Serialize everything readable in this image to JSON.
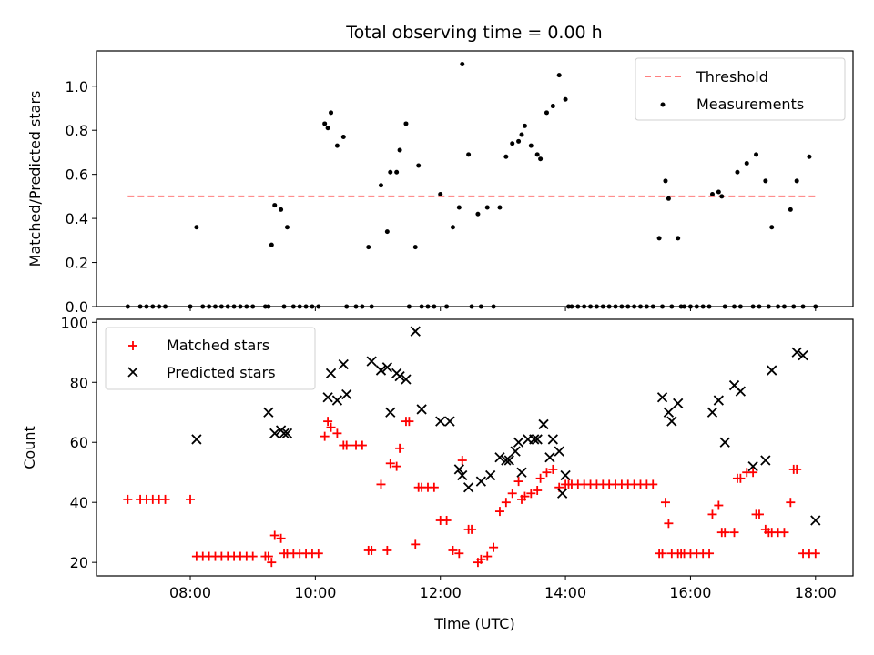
{
  "title": "Total observing time = 0.00 h",
  "chart_data": [
    {
      "type": "scatter",
      "ylabel": "Matched/Predicted stars",
      "xlim": [
        6.5,
        18.6
      ],
      "ylim": [
        0,
        1.16
      ],
      "yticks": [
        0.0,
        0.2,
        0.4,
        0.6,
        0.8,
        1.0
      ],
      "ytick_labels": [
        "0.0",
        "0.2",
        "0.4",
        "0.6",
        "0.8",
        "1.0"
      ],
      "threshold": {
        "name": "Threshold",
        "value": 0.5,
        "x_range": [
          7.0,
          18.05
        ],
        "color": "#ff7f7f",
        "style": "dashed"
      },
      "legend": {
        "placement": "top-right",
        "entries": [
          "Threshold",
          "Measurements"
        ]
      },
      "series": [
        {
          "name": "Measurements",
          "marker": "dot",
          "color": "#000000",
          "x": [
            7.0,
            7.2,
            7.3,
            7.4,
            7.5,
            7.6,
            8.0,
            8.1,
            8.2,
            8.3,
            8.4,
            8.5,
            8.6,
            8.7,
            8.8,
            8.9,
            9.0,
            9.2,
            9.25,
            9.3,
            9.35,
            9.45,
            9.5,
            9.55,
            9.65,
            9.75,
            9.85,
            9.95,
            10.05,
            10.15,
            10.2,
            10.25,
            10.35,
            10.45,
            10.5,
            10.65,
            10.75,
            10.85,
            10.9,
            11.05,
            11.15,
            11.2,
            11.3,
            11.35,
            11.45,
            11.5,
            11.6,
            11.65,
            11.7,
            11.8,
            11.9,
            12.0,
            12.1,
            12.2,
            12.3,
            12.35,
            12.45,
            12.5,
            12.6,
            12.65,
            12.75,
            12.85,
            12.95,
            13.05,
            13.15,
            13.25,
            13.3,
            13.35,
            13.45,
            13.55,
            13.6,
            13.7,
            13.8,
            13.9,
            14.0,
            14.05,
            14.1,
            14.2,
            14.3,
            14.4,
            14.5,
            14.6,
            14.7,
            14.8,
            14.9,
            15.0,
            15.1,
            15.2,
            15.3,
            15.4,
            15.5,
            15.55,
            15.6,
            15.65,
            15.7,
            15.8,
            15.85,
            15.9,
            16.0,
            16.1,
            16.2,
            16.3,
            16.35,
            16.45,
            16.5,
            16.55,
            16.7,
            16.75,
            16.8,
            16.9,
            17.0,
            17.05,
            17.1,
            17.2,
            17.25,
            17.3,
            17.4,
            17.5,
            17.6,
            17.65,
            17.7,
            17.8,
            17.9,
            18.0
          ],
          "y": [
            0.0,
            0.0,
            0.0,
            0.0,
            0.0,
            0.0,
            0.0,
            0.36,
            0.0,
            0.0,
            0.0,
            0.0,
            0.0,
            0.0,
            0.0,
            0.0,
            0.0,
            0.0,
            0.0,
            0.28,
            0.46,
            0.44,
            0.0,
            0.36,
            0.0,
            0.0,
            0.0,
            0.0,
            0.0,
            0.83,
            0.81,
            0.88,
            0.73,
            0.77,
            0.0,
            0.0,
            0.0,
            0.27,
            0.0,
            0.55,
            0.34,
            0.61,
            0.61,
            0.71,
            0.83,
            0.0,
            0.27,
            0.64,
            0.0,
            0.0,
            0.0,
            0.51,
            0.0,
            0.36,
            0.45,
            1.1,
            0.69,
            0.0,
            0.42,
            0.0,
            0.45,
            0.0,
            0.45,
            0.68,
            0.74,
            0.75,
            0.78,
            0.82,
            0.73,
            0.69,
            0.67,
            0.88,
            0.91,
            1.05,
            0.94,
            0.0,
            0.0,
            0.0,
            0.0,
            0.0,
            0.0,
            0.0,
            0.0,
            0.0,
            0.0,
            0.0,
            0.0,
            0.0,
            0.0,
            0.0,
            0.31,
            0.0,
            0.57,
            0.49,
            0.0,
            0.31,
            0.0,
            0.0,
            0.0,
            0.0,
            0.0,
            0.0,
            0.51,
            0.52,
            0.5,
            0.0,
            0.0,
            0.61,
            0.0,
            0.65,
            0.0,
            0.69,
            0.0,
            0.57,
            0.0,
            0.36,
            0.0,
            0.0,
            0.44,
            0.0,
            0.57,
            0.0,
            0.68,
            0.0
          ]
        }
      ]
    },
    {
      "type": "scatter",
      "xlabel": "Time (UTC)",
      "ylabel": "Count",
      "xlim": [
        6.5,
        18.6
      ],
      "ylim": [
        15.5,
        101
      ],
      "xticks": [
        8,
        10,
        12,
        14,
        16,
        18
      ],
      "xtick_labels": [
        "08:00",
        "10:00",
        "12:00",
        "14:00",
        "16:00",
        "18:00"
      ],
      "yticks": [
        20,
        40,
        60,
        80,
        100
      ],
      "ytick_labels": [
        "20",
        "40",
        "60",
        "80",
        "100"
      ],
      "legend": {
        "placement": "top-left",
        "entries": [
          "Matched stars",
          "Predicted stars"
        ]
      },
      "series": [
        {
          "name": "Matched stars",
          "marker": "plus",
          "color": "#ff0000",
          "x": [
            7.0,
            7.2,
            7.3,
            7.4,
            7.5,
            7.6,
            8.0,
            8.1,
            8.2,
            8.3,
            8.4,
            8.5,
            8.6,
            8.7,
            8.8,
            8.9,
            9.0,
            9.2,
            9.25,
            9.3,
            9.35,
            9.45,
            9.5,
            9.55,
            9.65,
            9.75,
            9.85,
            9.95,
            10.05,
            10.15,
            10.2,
            10.25,
            10.35,
            10.45,
            10.5,
            10.65,
            10.75,
            10.85,
            10.9,
            11.05,
            11.15,
            11.2,
            11.3,
            11.35,
            11.45,
            11.5,
            11.6,
            11.65,
            11.7,
            11.8,
            11.9,
            12.0,
            12.1,
            12.2,
            12.3,
            12.35,
            12.45,
            12.5,
            12.6,
            12.65,
            12.75,
            12.85,
            12.95,
            13.05,
            13.15,
            13.25,
            13.3,
            13.35,
            13.45,
            13.55,
            13.6,
            13.7,
            13.8,
            13.9,
            14.0,
            14.05,
            14.1,
            14.2,
            14.3,
            14.4,
            14.5,
            14.6,
            14.7,
            14.8,
            14.9,
            15.0,
            15.1,
            15.2,
            15.3,
            15.4,
            15.5,
            15.55,
            15.6,
            15.65,
            15.7,
            15.8,
            15.85,
            15.9,
            16.0,
            16.1,
            16.2,
            16.3,
            16.35,
            16.45,
            16.5,
            16.55,
            16.7,
            16.75,
            16.8,
            16.9,
            17.0,
            17.05,
            17.1,
            17.2,
            17.25,
            17.3,
            17.4,
            17.5,
            17.6,
            17.65,
            17.7,
            17.8,
            17.9,
            18.0
          ],
          "y": [
            41,
            41,
            41,
            41,
            41,
            41,
            41,
            22,
            22,
            22,
            22,
            22,
            22,
            22,
            22,
            22,
            22,
            22,
            22,
            20,
            29,
            28,
            23,
            23,
            23,
            23,
            23,
            23,
            23,
            62,
            67,
            65,
            63,
            59,
            59,
            59,
            59,
            24,
            24,
            46,
            24,
            53,
            52,
            58,
            67,
            67,
            26,
            45,
            45,
            45,
            45,
            34,
            34,
            24,
            23,
            54,
            31,
            31,
            20,
            21,
            22,
            25,
            37,
            40,
            43,
            47,
            41,
            42,
            43,
            44,
            48,
            50,
            51,
            45,
            46,
            46,
            46,
            46,
            46,
            46,
            46,
            46,
            46,
            46,
            46,
            46,
            46,
            46,
            46,
            46,
            23,
            23,
            40,
            33,
            23,
            23,
            23,
            23,
            23,
            23,
            23,
            23,
            36,
            39,
            30,
            30,
            30,
            48,
            48,
            50,
            50,
            36,
            36,
            31,
            30,
            30,
            30,
            30,
            40,
            51,
            51,
            23,
            23,
            23
          ]
        },
        {
          "name": "Predicted stars",
          "marker": "x",
          "color": "#000000",
          "x": [
            8.1,
            9.25,
            9.35,
            9.45,
            9.5,
            9.55,
            10.2,
            10.25,
            10.35,
            10.45,
            10.5,
            10.9,
            11.05,
            11.15,
            11.2,
            11.3,
            11.35,
            11.45,
            11.6,
            11.7,
            12.0,
            12.15,
            12.3,
            12.35,
            12.45,
            12.65,
            12.8,
            12.95,
            13.05,
            13.1,
            13.2,
            13.25,
            13.3,
            13.4,
            13.5,
            13.55,
            13.65,
            13.75,
            13.8,
            13.9,
            13.95,
            14.0,
            15.55,
            15.65,
            15.7,
            15.8,
            16.35,
            16.45,
            16.55,
            16.7,
            16.8,
            17.0,
            17.2,
            17.3,
            17.7,
            17.8,
            18.0
          ],
          "y": [
            61,
            70,
            63,
            64,
            63,
            63,
            75,
            83,
            74,
            86,
            76,
            87,
            84,
            85,
            70,
            83,
            82,
            81,
            97,
            71,
            67,
            67,
            51,
            49,
            45,
            47,
            49,
            55,
            54,
            54,
            57,
            60,
            50,
            61,
            61,
            61,
            66,
            55,
            61,
            57,
            43,
            49,
            75,
            70,
            67,
            73,
            70,
            74,
            60,
            79,
            77,
            52,
            54,
            84,
            90,
            89,
            34
          ]
        }
      ]
    }
  ]
}
